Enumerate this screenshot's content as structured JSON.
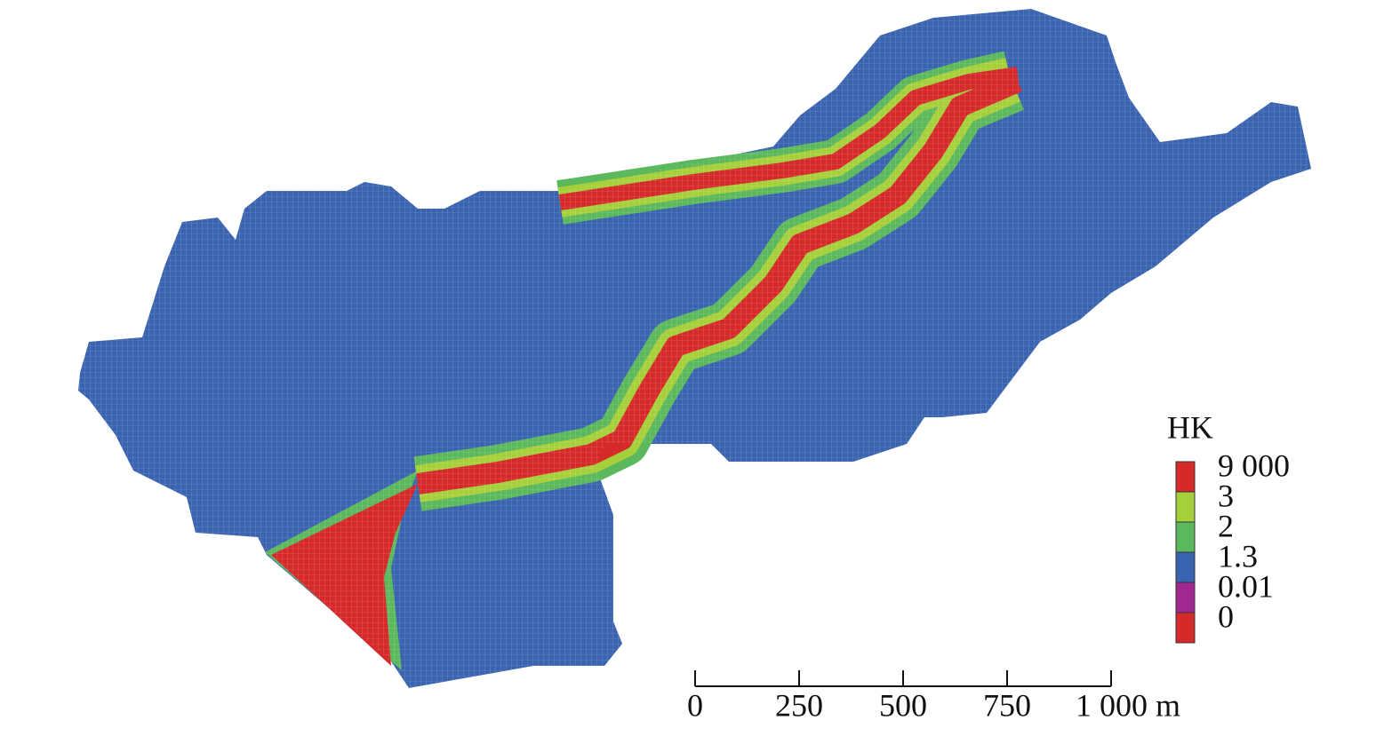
{
  "legend": {
    "title": "HK",
    "items": [
      {
        "label": "9 000",
        "color": "#d62a2a"
      },
      {
        "label": "3",
        "color": "#a6cf3c"
      },
      {
        "label": "2",
        "color": "#5cb85c"
      },
      {
        "label": "1.3",
        "color": "#3a63b0"
      },
      {
        "label": "0.01",
        "color": "#a0288f"
      },
      {
        "label": "0",
        "color": "#d62a2a"
      }
    ]
  },
  "scale_bar": {
    "labels": [
      "0",
      "250",
      "500",
      "750",
      "1 000 m"
    ]
  }
}
